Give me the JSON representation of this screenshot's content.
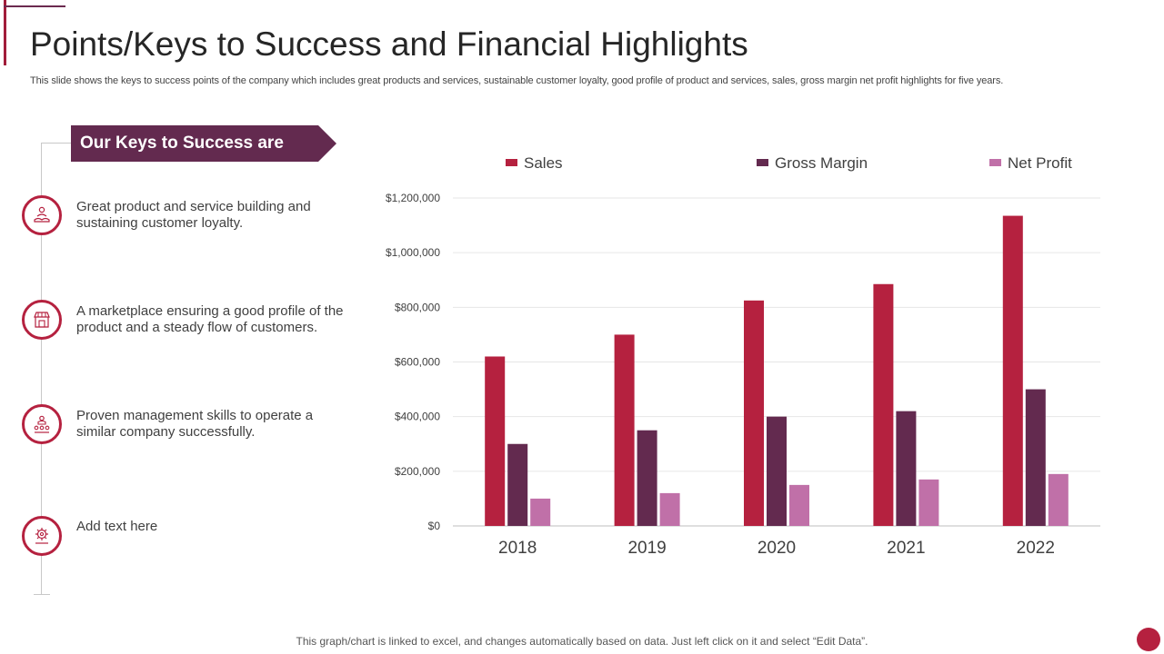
{
  "page": {
    "title": "Points/Keys to Success and Financial Highlights",
    "subtitle": "This slide shows the keys to  success points of the company which includes great products and services, sustainable customer loyalty, good profile of product and services, sales, gross margin net profit highlights for five years.",
    "footer": "This graph/chart is linked to excel,  and changes automatically based on data. Just left click on it and select “Edit Data”."
  },
  "keys": {
    "heading": "Our Keys to Success  are",
    "items": [
      {
        "icon": "customer-loyalty-icon",
        "text": "Great product and service building and sustaining customer loyalty."
      },
      {
        "icon": "marketplace-icon",
        "text": "A marketplace ensuring a good profile of the product and a steady flow of customers."
      },
      {
        "icon": "management-icon",
        "text": "Proven management skills to operate a similar company successfully."
      },
      {
        "icon": "gear-icon",
        "text": "Add text here"
      }
    ]
  },
  "colors": {
    "accent": "#b5213f",
    "sales": "#b5213f",
    "gross_margin": "#632a4f",
    "net_profit": "#c070a8",
    "banner": "#632a4f"
  },
  "chart_data": {
    "type": "bar",
    "title": "",
    "xlabel": "",
    "ylabel": "",
    "categories": [
      "2018",
      "2019",
      "2020",
      "2021",
      "2022"
    ],
    "series": [
      {
        "name": "Sales",
        "values": [
          620000,
          700000,
          825000,
          885000,
          1135000
        ]
      },
      {
        "name": "Gross Margin",
        "values": [
          300000,
          350000,
          400000,
          420000,
          500000
        ]
      },
      {
        "name": "Net Profit",
        "values": [
          100000,
          120000,
          150000,
          170000,
          190000
        ]
      }
    ],
    "ylim": [
      0,
      1200000
    ],
    "yticks": [
      0,
      200000,
      400000,
      600000,
      800000,
      1000000,
      1200000
    ],
    "ytick_labels": [
      "$0",
      "$200,000",
      "$400,000",
      "$600,000",
      "$800,000",
      "$1,000,000",
      "$1,200,000"
    ],
    "grid": true,
    "legend": "top"
  }
}
